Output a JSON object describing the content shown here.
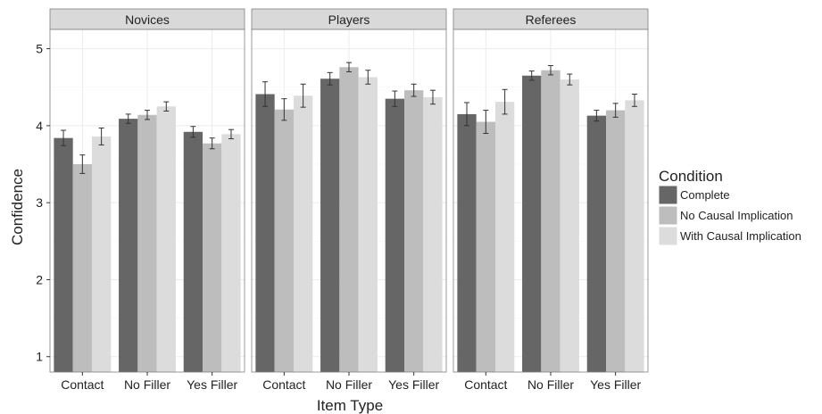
{
  "chart_data": {
    "type": "bar",
    "xlabel": "Item Type",
    "ylabel": "Confidence",
    "ylim": [
      0.8,
      5.25
    ],
    "yticks": [
      1,
      2,
      3,
      4,
      5
    ],
    "grid": true,
    "legend": {
      "title": "Condition",
      "placement": "right",
      "entries": [
        "Complete",
        "No Causal Implication",
        "With Causal Implication"
      ]
    },
    "colors": {
      "Complete": "#666666",
      "No Causal Implication": "#bdbdbd",
      "With Causal Implication": "#dcdcdc",
      "strip": "#d9d9d9",
      "grid_major": "#ebebeb",
      "grid_minor": "#f6f6f6",
      "panel_border": "#7f7f7f",
      "error_bar": "#333333"
    },
    "categories": [
      "Contact",
      "No Filler",
      "Yes Filler"
    ],
    "panels": [
      {
        "title": "Novices",
        "series": [
          {
            "name": "Complete",
            "values": [
              3.84,
              4.09,
              3.92
            ],
            "errors": [
              0.1,
              0.06,
              0.07
            ]
          },
          {
            "name": "No Causal Implication",
            "values": [
              3.5,
              4.14,
              3.77
            ],
            "errors": [
              0.12,
              0.06,
              0.07
            ]
          },
          {
            "name": "With Causal Implication",
            "values": [
              3.86,
              4.25,
              3.89
            ],
            "errors": [
              0.11,
              0.06,
              0.06
            ]
          }
        ]
      },
      {
        "title": "Players",
        "series": [
          {
            "name": "Complete",
            "values": [
              4.41,
              4.61,
              4.35
            ],
            "errors": [
              0.16,
              0.08,
              0.1
            ]
          },
          {
            "name": "No Causal Implication",
            "values": [
              4.21,
              4.76,
              4.46
            ],
            "errors": [
              0.14,
              0.06,
              0.08
            ]
          },
          {
            "name": "With Causal Implication",
            "values": [
              4.39,
              4.63,
              4.37
            ],
            "errors": [
              0.15,
              0.09,
              0.09
            ]
          }
        ]
      },
      {
        "title": "Referees",
        "series": [
          {
            "name": "Complete",
            "values": [
              4.15,
              4.65,
              4.13
            ],
            "errors": [
              0.15,
              0.06,
              0.07
            ]
          },
          {
            "name": "No Causal Implication",
            "values": [
              4.05,
              4.72,
              4.2
            ],
            "errors": [
              0.15,
              0.06,
              0.09
            ]
          },
          {
            "name": "With Causal Implication",
            "values": [
              4.31,
              4.6,
              4.33
            ],
            "errors": [
              0.16,
              0.07,
              0.08
            ]
          }
        ]
      }
    ]
  }
}
